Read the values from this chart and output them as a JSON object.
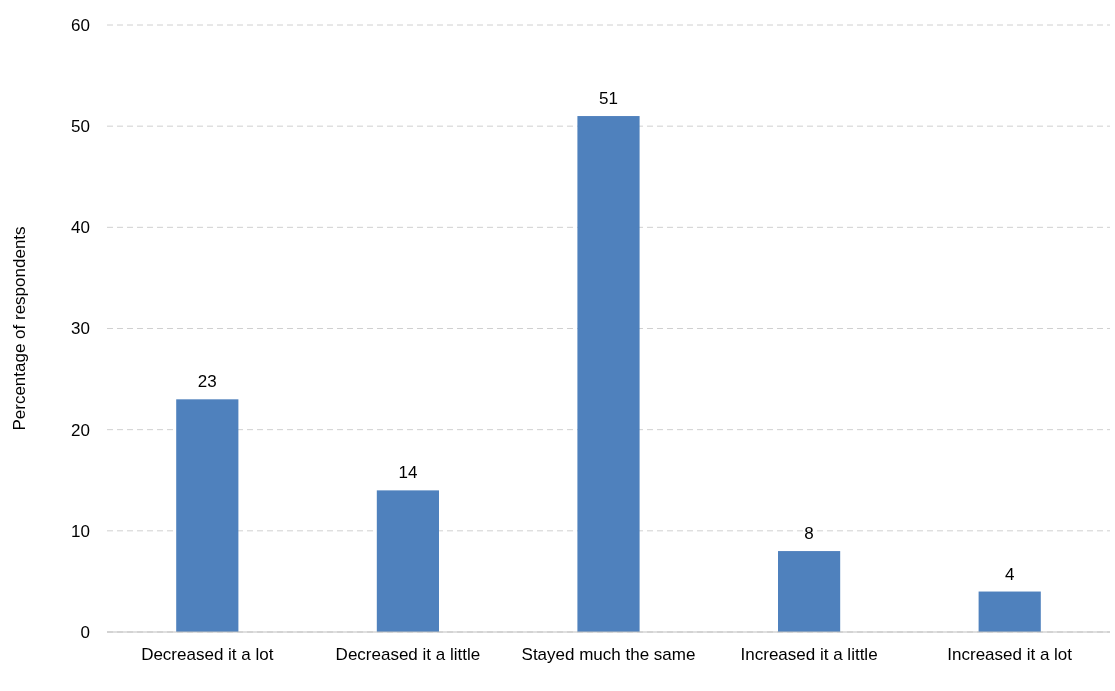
{
  "chart_data": {
    "type": "bar",
    "ylabel": "Percentage of respondents",
    "categories": [
      "Decreased it a lot",
      "Decreased it a little",
      "Stayed much the same",
      "Increased it a little",
      "Increased it a lot"
    ],
    "values": [
      23,
      14,
      51,
      8,
      4
    ],
    "color": "#4f81bd",
    "ylim": [
      0,
      60
    ],
    "yticks": [
      0,
      10,
      20,
      30,
      40,
      50,
      60
    ],
    "grid": "y",
    "data_labels": true
  }
}
